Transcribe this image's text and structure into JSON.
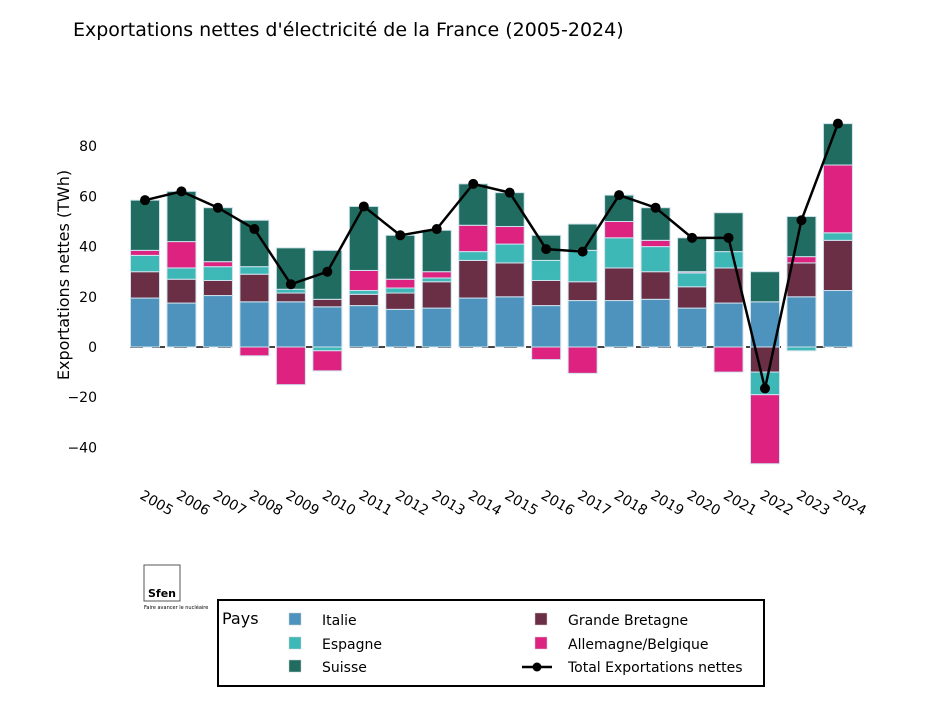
{
  "chart_data": {
    "type": "bar",
    "stacked": true,
    "title": "Exportations nettes d'électricité de la France (2005-2024)",
    "ylabel": "Exportations nettes (TWh)",
    "xlabel": "",
    "ylim": [
      -50,
      95
    ],
    "yticks": [
      -40,
      -20,
      0,
      20,
      40,
      60,
      80
    ],
    "ytick_labels": [
      "−40",
      "−20",
      "0",
      "20",
      "40",
      "60",
      "80"
    ],
    "grid": false,
    "categories": [
      "2005",
      "2006",
      "2007",
      "2008",
      "2009",
      "2010",
      "2011",
      "2012",
      "2013",
      "2014",
      "2015",
      "2016",
      "2017",
      "2018",
      "2019",
      "2020",
      "2021",
      "2022",
      "2023",
      "2024"
    ],
    "series": [
      {
        "name": "Italie",
        "color": "#4e93bd",
        "values": [
          19.5,
          17.5,
          20.5,
          18,
          18,
          16,
          16.5,
          15,
          15.5,
          19.5,
          20,
          16.5,
          18.5,
          18.5,
          19,
          15.5,
          17.5,
          18,
          20,
          22.5
        ]
      },
      {
        "name": "Grande Bretagne",
        "color": "#6a2e45",
        "values": [
          10.5,
          9.5,
          6,
          11,
          3.5,
          3,
          4.5,
          6.5,
          10.5,
          15,
          13.5,
          10,
          7.5,
          13,
          11,
          8.5,
          14,
          -10,
          13.5,
          20
        ]
      },
      {
        "name": "Espagne",
        "color": "#3db8b6",
        "values": [
          6.5,
          4.5,
          5.5,
          3,
          1.5,
          -1.5,
          1.5,
          2,
          1.5,
          3.5,
          7.5,
          8,
          12.5,
          12,
          10,
          5.5,
          6.5,
          -9,
          -1.5,
          3
        ]
      },
      {
        "name": "Allemagne/Belgique",
        "color": "#de2280",
        "values": [
          2,
          10.5,
          2,
          -3.5,
          -15,
          -8,
          8,
          3.5,
          2.5,
          10.5,
          7,
          -5,
          -10.5,
          6.5,
          2.5,
          0.5,
          -10,
          -27.5,
          2.5,
          27
        ]
      },
      {
        "name": "Suisse",
        "color": "#206c60",
        "values": [
          20,
          20,
          21.5,
          18.5,
          16.5,
          19.5,
          25.5,
          17.5,
          16.5,
          16.5,
          13.5,
          10,
          10.5,
          10.5,
          13,
          13.5,
          15.5,
          12,
          16,
          16.5
        ]
      }
    ],
    "line": {
      "name": "Total Exportations nettes",
      "color": "#000000",
      "values": [
        58.5,
        62,
        55.5,
        47,
        25,
        30,
        56,
        44.5,
        47,
        65,
        61.5,
        39,
        38,
        60.5,
        55.5,
        43.5,
        43.5,
        -16.5,
        50.5,
        89
      ]
    },
    "legend": {
      "title": "Pays",
      "placement": "bottom"
    }
  },
  "logo": {
    "name": "Sfen",
    "tagline": "Faire avancer le nucléaire"
  }
}
